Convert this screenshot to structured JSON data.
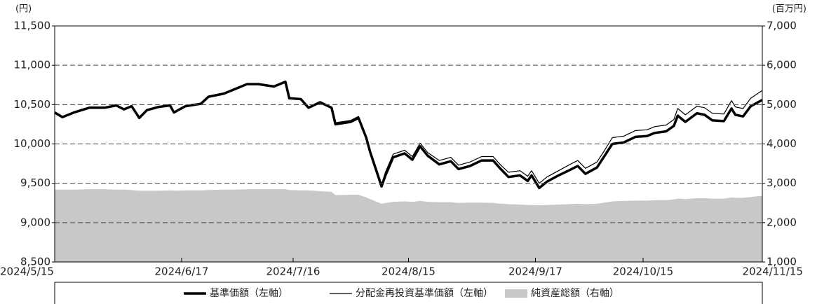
{
  "chart_data": {
    "type": "line",
    "y_label": "(円)",
    "y2_label": "(百万円)",
    "x": [
      "2024/5/15",
      "2024/5/17",
      "2024/5/20",
      "2024/5/24",
      "2024/5/28",
      "2024/5/31",
      "2024/6/2",
      "2024/6/4",
      "2024/6/6",
      "2024/6/8",
      "2024/6/11",
      "2024/6/14",
      "2024/6/15",
      "2024/6/18",
      "2024/6/22",
      "2024/6/24",
      "2024/6/28",
      "2024/7/1",
      "2024/7/4",
      "2024/7/7",
      "2024/7/11",
      "2024/7/14",
      "2024/7/15",
      "2024/7/18",
      "2024/7/20",
      "2024/7/23",
      "2024/7/26",
      "2024/7/27",
      "2024/7/31",
      "2024/8/2",
      "2024/8/4",
      "2024/8/5",
      "2024/8/8",
      "2024/8/9",
      "2024/8/11",
      "2024/8/14",
      "2024/8/16",
      "2024/8/18",
      "2024/8/20",
      "2024/8/23",
      "2024/8/26",
      "2024/8/28",
      "2024/8/31",
      "2024/9/3",
      "2024/9/6",
      "2024/9/8",
      "2024/9/10",
      "2024/9/13",
      "2024/9/15",
      "2024/9/16",
      "2024/9/18",
      "2024/9/20",
      "2024/9/23",
      "2024/9/26",
      "2024/9/28",
      "2024/9/30",
      "2024/10/3",
      "2024/10/5",
      "2024/10/7",
      "2024/10/10",
      "2024/10/13",
      "2024/10/16",
      "2024/10/18",
      "2024/10/21",
      "2024/10/23",
      "2024/10/24",
      "2024/10/26",
      "2024/10/29",
      "2024/10/31",
      "2024/11/2",
      "2024/11/5",
      "2024/11/7",
      "2024/11/8",
      "2024/11/10",
      "2024/11/12",
      "2024/11/15"
    ],
    "series": [
      {
        "name": "純資産総額（右軸）",
        "color": "#c8c8c8",
        "style": "area",
        "axis": "y2",
        "values": [
          2840,
          2840,
          2840,
          2850,
          2850,
          2840,
          2840,
          2830,
          2810,
          2810,
          2810,
          2820,
          2810,
          2820,
          2820,
          2830,
          2840,
          2840,
          2850,
          2850,
          2850,
          2850,
          2830,
          2820,
          2820,
          2800,
          2780,
          2700,
          2710,
          2710,
          2640,
          2600,
          2480,
          2500,
          2530,
          2540,
          2530,
          2550,
          2530,
          2520,
          2520,
          2500,
          2510,
          2510,
          2500,
          2480,
          2470,
          2460,
          2450,
          2450,
          2440,
          2450,
          2460,
          2470,
          2480,
          2470,
          2480,
          2510,
          2540,
          2550,
          2560,
          2560,
          2570,
          2570,
          2590,
          2610,
          2600,
          2620,
          2620,
          2610,
          2610,
          2640,
          2630,
          2630,
          2650,
          2680
        ]
      },
      {
        "name": "基準価額（左軸）",
        "color": "#000000",
        "style": "line",
        "line_width": 3.5,
        "values": [
          10400,
          10340,
          10400,
          10460,
          10460,
          10490,
          10440,
          10480,
          10330,
          10430,
          10470,
          10490,
          10400,
          10480,
          10510,
          10600,
          10640,
          10700,
          10760,
          10760,
          10730,
          10790,
          10580,
          10570,
          10460,
          10530,
          10460,
          10250,
          10280,
          10330,
          10080,
          9900,
          9460,
          9600,
          9830,
          9880,
          9800,
          9970,
          9850,
          9740,
          9780,
          9680,
          9720,
          9790,
          9790,
          9680,
          9580,
          9600,
          9530,
          9600,
          9440,
          9520,
          9600,
          9670,
          9720,
          9620,
          9700,
          9850,
          10000,
          10020,
          10090,
          10100,
          10140,
          10160,
          10230,
          10360,
          10280,
          10390,
          10370,
          10300,
          10290,
          10450,
          10370,
          10350,
          10480,
          10560
        ]
      },
      {
        "name": "分配金再投資基準価額（左軸）",
        "color": "#000000",
        "style": "line",
        "line_width": 1.2,
        "values": [
          10400,
          10340,
          10400,
          10460,
          10460,
          10490,
          10440,
          10480,
          10330,
          10430,
          10470,
          10490,
          10400,
          10480,
          10510,
          10600,
          10640,
          10700,
          10760,
          10760,
          10730,
          10790,
          10580,
          10570,
          10460,
          10530,
          10470,
          10270,
          10300,
          10350,
          10100,
          9930,
          9490,
          9640,
          9870,
          9920,
          9840,
          10010,
          9890,
          9790,
          9830,
          9730,
          9770,
          9840,
          9840,
          9730,
          9640,
          9660,
          9590,
          9660,
          9500,
          9580,
          9660,
          9740,
          9790,
          9690,
          9770,
          9920,
          10080,
          10100,
          10170,
          10180,
          10220,
          10240,
          10310,
          10450,
          10370,
          10480,
          10460,
          10390,
          10380,
          10550,
          10470,
          10450,
          10580,
          10680
        ]
      }
    ],
    "xlim": [
      "2024/5/15",
      "2024/11/15"
    ],
    "xticks": [
      "2024/5/15",
      "2024/6/17",
      "2024/7/16",
      "2024/8/15",
      "2024/9/17",
      "2024/10/15",
      "2024/11/15"
    ],
    "ylim": [
      8500,
      11500
    ],
    "yticks": [
      {
        "value": 8500,
        "label": "8,500"
      },
      {
        "value": 9000,
        "label": "9,000"
      },
      {
        "value": 9500,
        "label": "9,500"
      },
      {
        "value": 10000,
        "label": "10,000"
      },
      {
        "value": 10500,
        "label": "10,500"
      },
      {
        "value": 11000,
        "label": "11,000"
      },
      {
        "value": 11500,
        "label": "11,500"
      }
    ],
    "y2lim": [
      1000,
      7000
    ],
    "y2ticks": [
      {
        "value": 1000,
        "label": "1,000"
      },
      {
        "value": 2000,
        "label": "2,000"
      },
      {
        "value": 3000,
        "label": "3,000"
      },
      {
        "value": 4000,
        "label": "4,000"
      },
      {
        "value": 5000,
        "label": "5,000"
      },
      {
        "value": 6000,
        "label": "6,000"
      },
      {
        "value": 7000,
        "label": "7,000"
      }
    ],
    "grid": true,
    "legend": "bottom"
  }
}
